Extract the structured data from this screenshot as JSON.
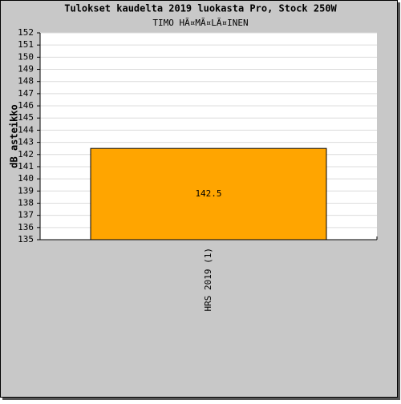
{
  "chart_data": {
    "type": "bar",
    "title": "Tulokset kaudelta 2019 luokasta Pro, Stock 250W",
    "subtitle": "TIMO HÃ¤MÃ¤LÃ¤INEN",
    "y_label": "dB asteikko",
    "categories": [
      "HRS 2019 (1)"
    ],
    "values": [
      142.5
    ],
    "color": "#ffa500",
    "ylim": [
      135,
      152
    ],
    "yticks": [
      135,
      136,
      137,
      138,
      139,
      140,
      141,
      142,
      143,
      144,
      145,
      146,
      147,
      148,
      149,
      150,
      151,
      152
    ],
    "grid": true
  }
}
